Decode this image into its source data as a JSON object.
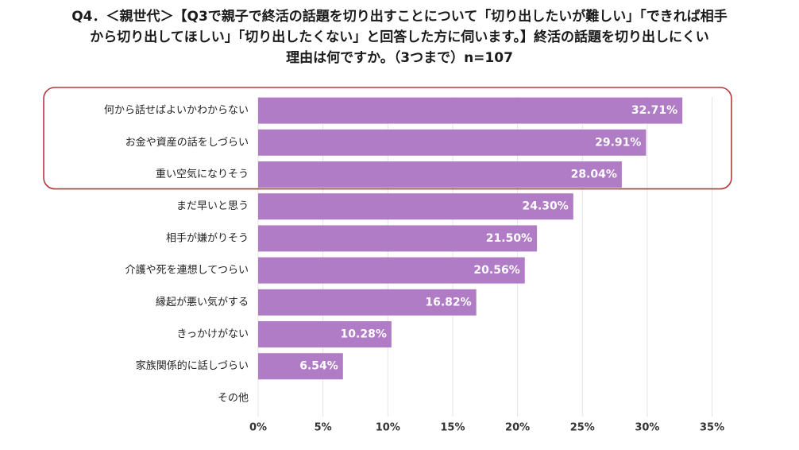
{
  "title_lines": [
    "Q4．＜親世代＞【Q3で親子で終活の話題を切り出すことについて「切り出したいが難しい」「できれば相手",
    "から切り出してほしい」「切り出したくない」と回答した方に伺います。】終活の話題を切り出しにくい",
    "理由は何ですか。（3つまで）n=107"
  ],
  "colors": {
    "bar": "#b07cc6",
    "highlight_border": "#b5383c",
    "grid": "#e3e3e3",
    "label_on_bar": "#ffffff"
  },
  "chart_data": {
    "type": "bar",
    "orientation": "horizontal",
    "categories": [
      "何から話せばよいかわからない",
      "お金や資産の話をしづらい",
      "重い空気になりそう",
      "まだ早いと思う",
      "相手が嫌がりそう",
      "介護や死を連想してつらい",
      "縁起が悪い気がする",
      "きっかけがない",
      "家族関係的に話しづらい",
      "その他"
    ],
    "values": [
      32.71,
      29.91,
      28.04,
      24.3,
      21.5,
      20.56,
      16.82,
      10.28,
      6.54,
      0
    ],
    "value_labels": [
      "32.71%",
      "29.91%",
      "28.04%",
      "24.30%",
      "21.50%",
      "20.56%",
      "16.82%",
      "10.28%",
      "6.54%",
      ""
    ],
    "xlim": [
      0,
      35
    ],
    "xticks": [
      0,
      5,
      10,
      15,
      20,
      25,
      30,
      35
    ],
    "xtick_labels": [
      "0%",
      "5%",
      "10%",
      "15%",
      "20%",
      "25%",
      "30%",
      "35%"
    ],
    "grid": true,
    "highlighted_categories": [
      0,
      1,
      2
    ]
  }
}
